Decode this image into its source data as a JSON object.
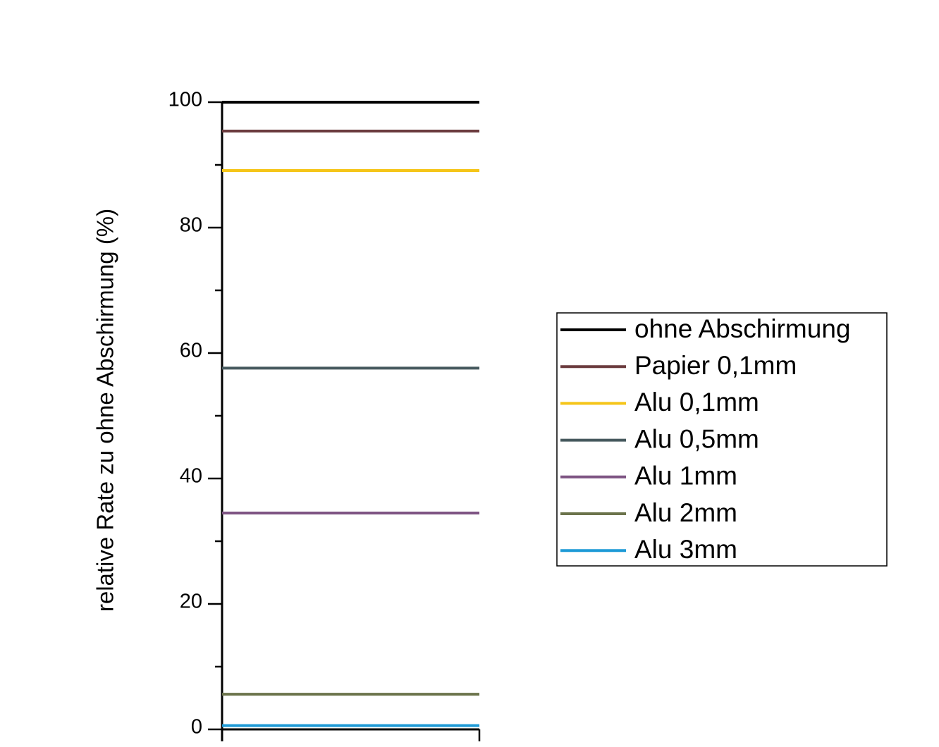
{
  "chart_data": {
    "type": "line",
    "y_label": "relative Rate zu ohne Abschirmung (%)",
    "categories": [
      null,
      null
    ],
    "series": [
      {
        "name": "ohne Abschirmung",
        "color": "#000000",
        "values": [
          100,
          100
        ]
      },
      {
        "name": "Papier 0,1mm",
        "color": "#6b3b3e",
        "values": [
          95.4,
          95.4
        ]
      },
      {
        "name": "Alu 0,1mm",
        "color": "#f5c518",
        "values": [
          89.1,
          89.1
        ]
      },
      {
        "name": "Alu 0,5mm",
        "color": "#46595e",
        "values": [
          57.6,
          57.6
        ]
      },
      {
        "name": "Alu 1mm",
        "color": "#7e5483",
        "values": [
          34.5,
          34.5
        ]
      },
      {
        "name": "Alu 2mm",
        "color": "#6b734b",
        "values": [
          5.6,
          5.6
        ]
      },
      {
        "name": "Alu 3mm",
        "color": "#1e9ad6",
        "values": [
          0.6,
          0.6
        ]
      }
    ],
    "ylim": [
      0,
      100
    ],
    "yticks": [
      0,
      20,
      40,
      60,
      80,
      100
    ],
    "yminorticks": [
      10,
      30,
      50,
      70,
      90
    ],
    "grid": false,
    "legend": "right"
  }
}
